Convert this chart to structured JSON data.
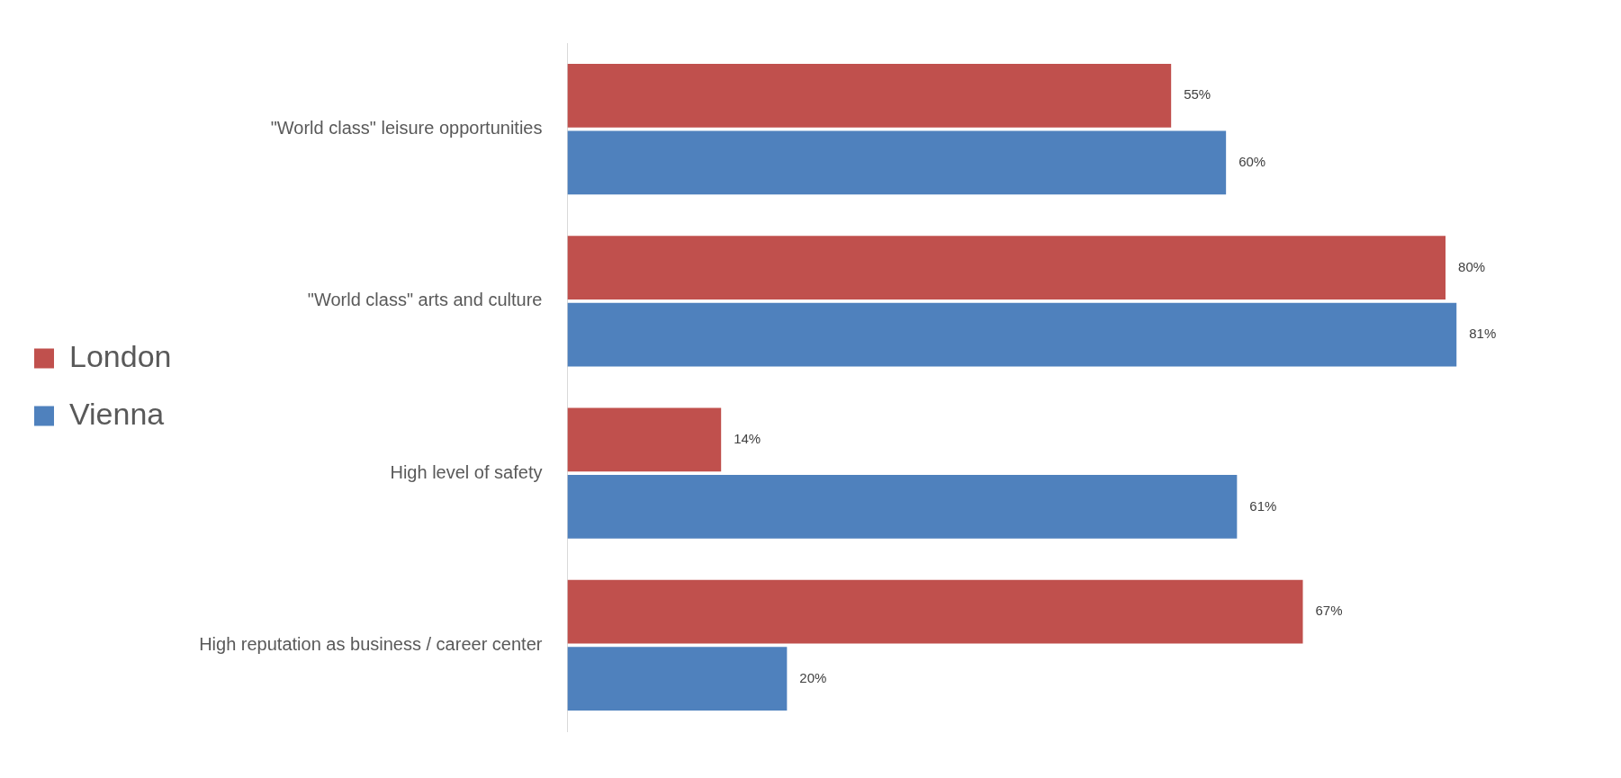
{
  "chart_data": {
    "type": "bar",
    "orientation": "horizontal",
    "categories": [
      "\"World class\" leisure opportunities",
      "\"World class\" arts and culture",
      "High level of safety",
      "High reputation as business / career center"
    ],
    "series": [
      {
        "name": "London",
        "color": "#c0504d",
        "values": [
          55,
          80,
          14,
          67
        ],
        "value_labels": [
          "55%",
          "80%",
          "14%",
          "67%"
        ]
      },
      {
        "name": "Vienna",
        "color": "#4f81bd",
        "values": [
          60,
          81,
          61,
          20
        ],
        "value_labels": [
          "60%",
          "81%",
          "61%",
          "20%"
        ]
      }
    ],
    "grid": false,
    "legend": "left",
    "tick_labels": "y"
  }
}
